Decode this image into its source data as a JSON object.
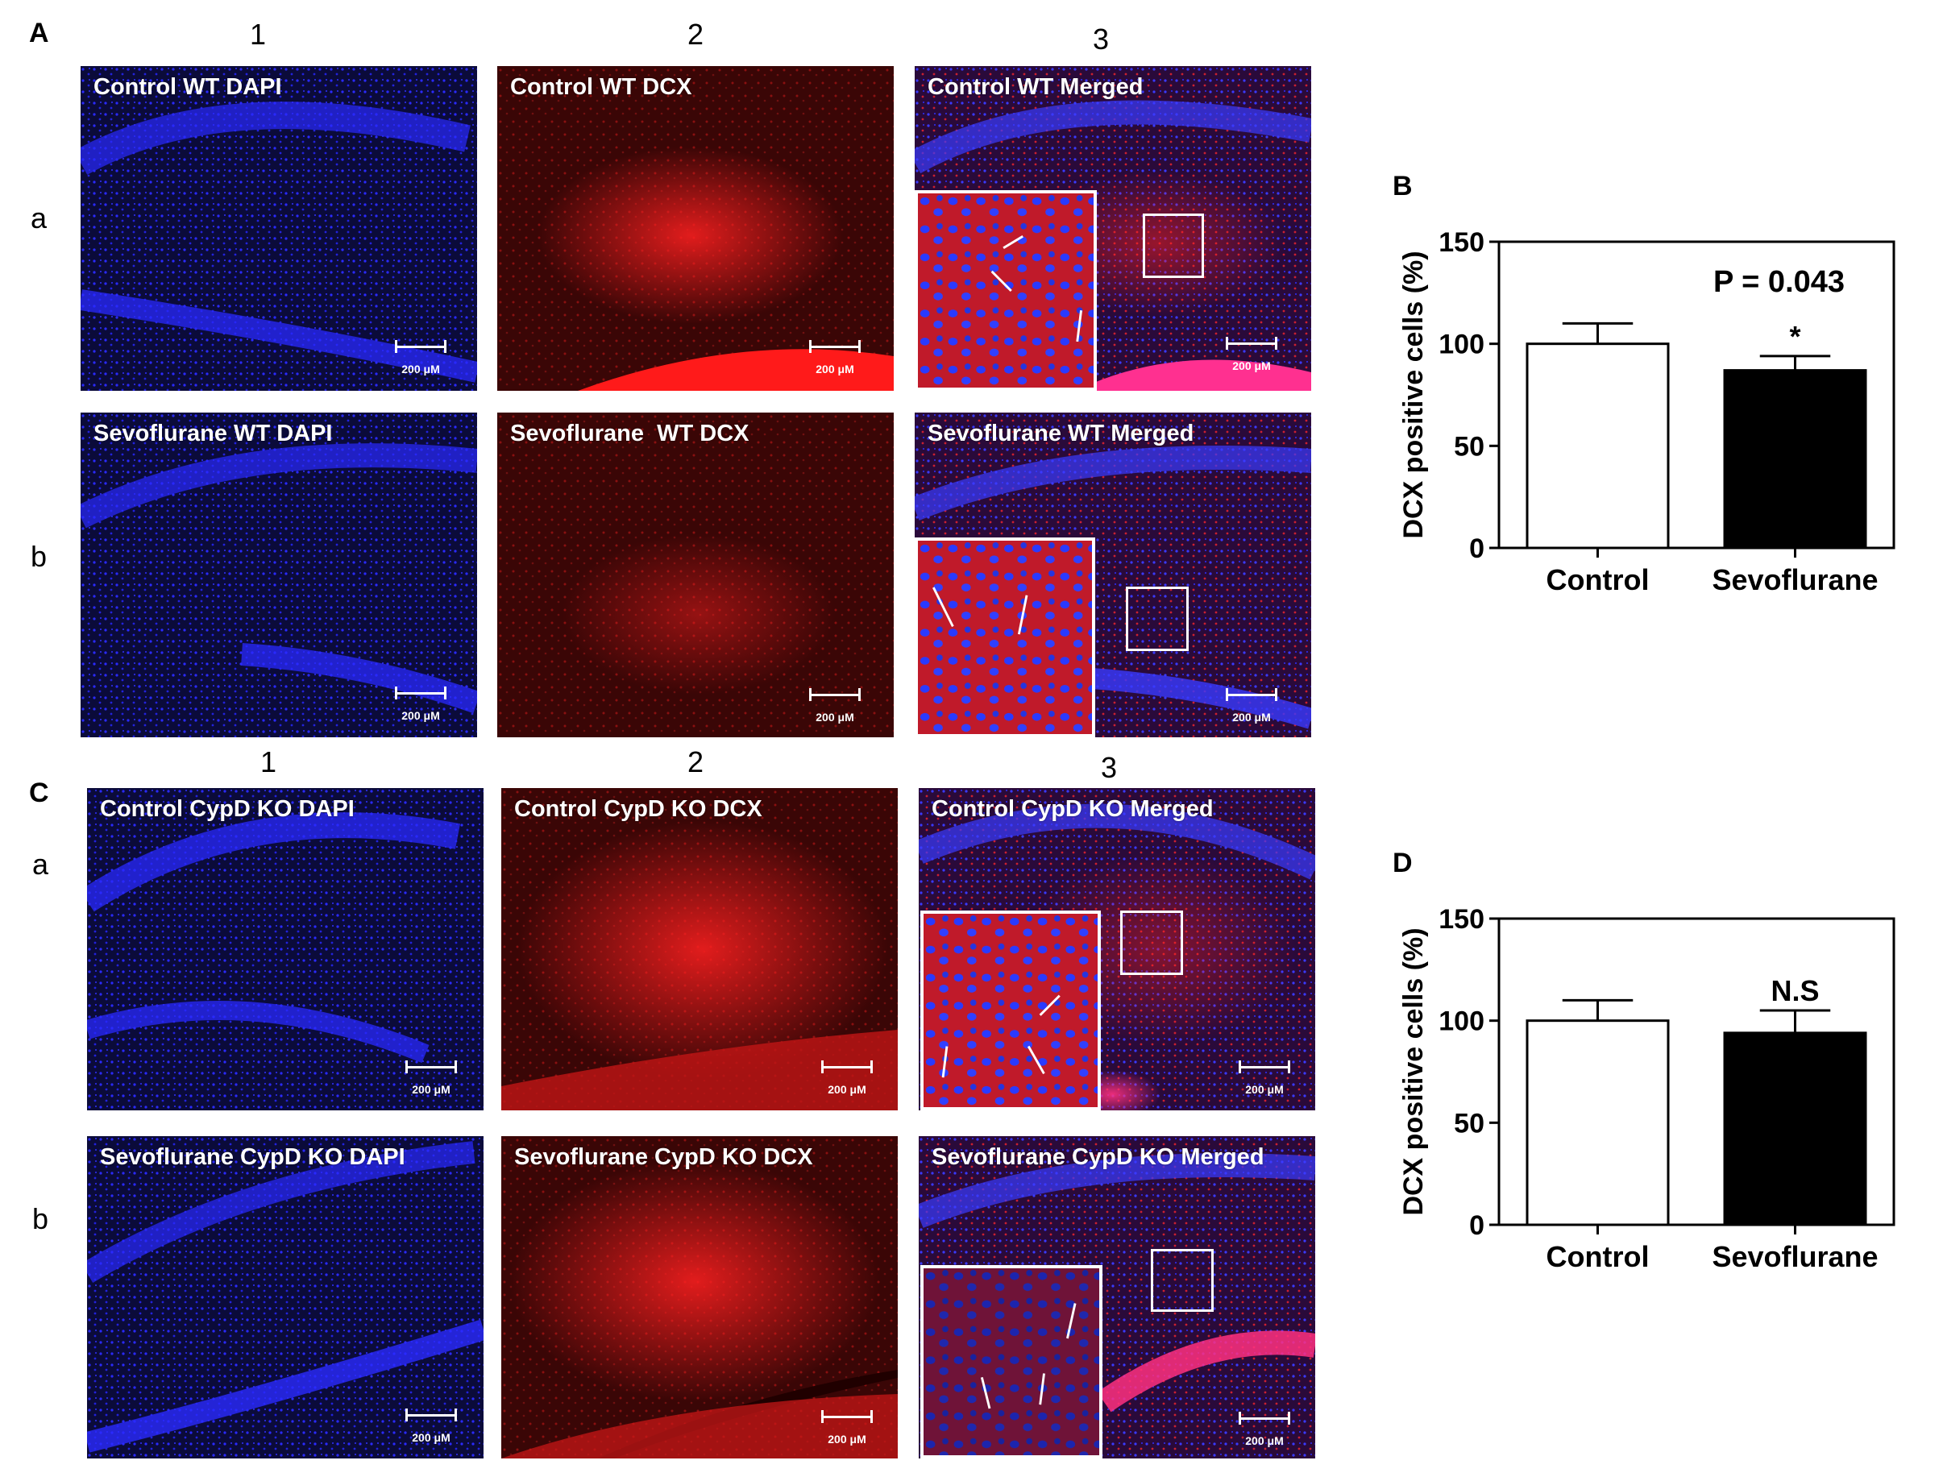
{
  "panels": {
    "A": "A",
    "B": "B",
    "C": "C",
    "D": "D"
  },
  "column_labels": [
    "1",
    "2",
    "3"
  ],
  "row_labels": [
    "a",
    "b"
  ],
  "micrographs": {
    "A": {
      "a": [
        "Control WT DAPI",
        "Control WT DCX",
        "Control WT Merged"
      ],
      "b": [
        "Sevoflurane WT DAPI",
        "Sevoflurane  WT DCX",
        "Sevoflurane WT Merged"
      ]
    },
    "C": {
      "a": [
        "Control CypD KO DAPI",
        "Control CypD KO DCX",
        "Control CypD KO Merged"
      ],
      "b": [
        "Sevoflurane CypD KO DAPI",
        "Sevoflurane CypD KO DCX",
        "Sevoflurane CypD KO Merged"
      ]
    }
  },
  "scale_bar_label": "200 μM",
  "colors": {
    "dapi": "#1a1aff",
    "dcx": "#e01010",
    "background_dark": "#0a0a2a"
  },
  "chart_data": [
    {
      "panel": "B",
      "type": "bar",
      "categories": [
        "Control",
        "Sevoflurane"
      ],
      "values": [
        100,
        87
      ],
      "errors": [
        10,
        7
      ],
      "bar_colors": [
        "#ffffff",
        "#000000"
      ],
      "ylabel": "DCX positive cells (%)",
      "ylim": [
        0,
        150
      ],
      "yticks": [
        0,
        50,
        100,
        150
      ],
      "annotation": "P = 0.043",
      "significance": "*"
    },
    {
      "panel": "D",
      "type": "bar",
      "categories": [
        "Control",
        "Sevoflurane"
      ],
      "values": [
        100,
        94
      ],
      "errors": [
        10,
        11
      ],
      "bar_colors": [
        "#ffffff",
        "#000000"
      ],
      "ylabel": "DCX positive cells (%)",
      "ylim": [
        0,
        150
      ],
      "yticks": [
        0,
        50,
        100,
        150
      ],
      "annotation": "",
      "significance": "N.S"
    }
  ]
}
